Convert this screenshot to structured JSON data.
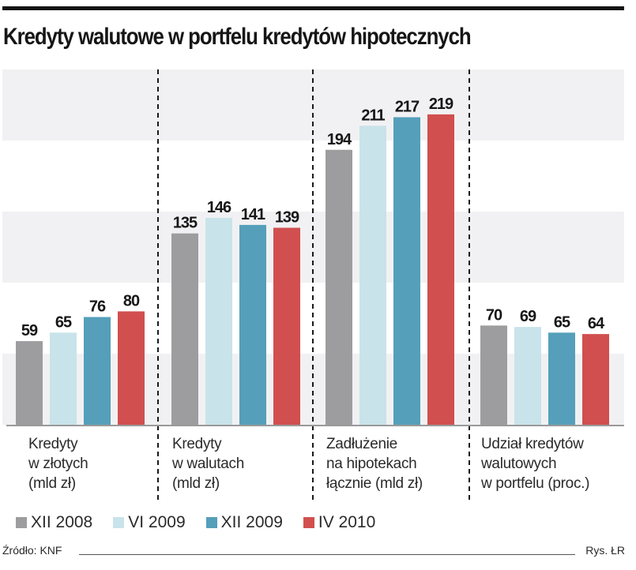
{
  "title": "Kredyty walutowe w portfelu kredytów hipotecznych",
  "source": "Źródło: KNF",
  "credit": "Rys. ŁR",
  "colors": {
    "XII 2008": "#9d9d9f",
    "VI 2009": "#c9e3ea",
    "XII 2009": "#559fba",
    "IV 2010": "#d14f4f",
    "stripe": "#f1f1f3",
    "divider": "#1a1a1a"
  },
  "chart_data": {
    "type": "bar",
    "title": "Kredyty walutowe w portfelu kredytów hipotecznych",
    "xlabel": "",
    "ylabel": "",
    "ylim": [
      0,
      240
    ],
    "grid": "horizontal bands",
    "legend_position": "bottom",
    "categories": [
      "Kredyty\nw złotych\n(mld zł)",
      "Kredyty\nw walutach\n(mld zł)",
      "Zadłużenie\nna hipotekach\nłącznie (mld zł)",
      "Udział kredytów\nwalutowych\nw portfelu (proc.)"
    ],
    "series": [
      {
        "name": "XII 2008",
        "values": [
          59,
          135,
          194,
          70
        ]
      },
      {
        "name": "VI 2009",
        "values": [
          65,
          146,
          211,
          69
        ]
      },
      {
        "name": "XII 2009",
        "values": [
          76,
          141,
          217,
          65
        ]
      },
      {
        "name": "IV 2010",
        "values": [
          80,
          139,
          219,
          64
        ]
      }
    ]
  }
}
